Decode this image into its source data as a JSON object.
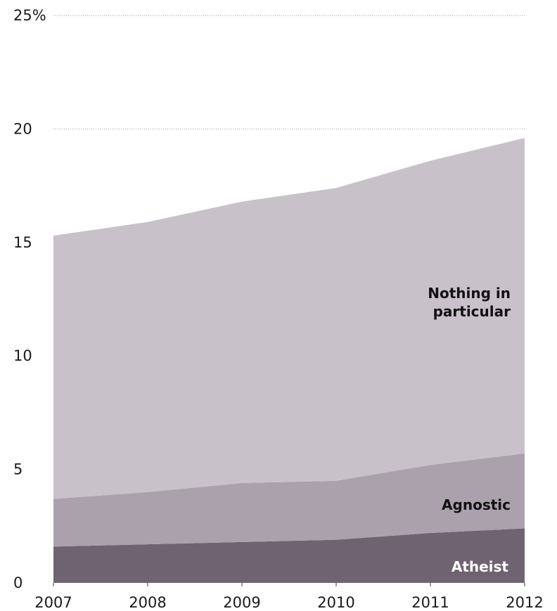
{
  "chart_data": {
    "type": "area",
    "stacked": true,
    "x": [
      2007,
      2008,
      2009,
      2010,
      2011,
      2012
    ],
    "series": [
      {
        "name": "Atheist",
        "values": [
          1.6,
          1.7,
          1.8,
          1.9,
          2.2,
          2.4
        ],
        "color": "#6f6371"
      },
      {
        "name": "Agnostic",
        "values": [
          2.1,
          2.3,
          2.6,
          2.6,
          3.0,
          3.3
        ],
        "color": "#aba1ad"
      },
      {
        "name": "Nothing in particular",
        "values": [
          11.6,
          11.9,
          12.4,
          12.9,
          13.4,
          13.9
        ],
        "color": "#c8c1ca"
      }
    ],
    "ylim": [
      0,
      25
    ],
    "yticks": [
      "0",
      "5",
      "10",
      "15",
      "20",
      "25%"
    ],
    "xticks": [
      "2007",
      "2008",
      "2009",
      "2010",
      "2011",
      "2012"
    ],
    "labels": {
      "atheist": "Atheist",
      "agnostic": "Agnostic",
      "nothing_line1": "Nothing in",
      "nothing_line2": "particular"
    },
    "label_colors": {
      "atheist": "#ffffff",
      "agnostic": "#111111",
      "nothing": "#111111"
    },
    "grid": "dotted, at 20 and 25"
  }
}
